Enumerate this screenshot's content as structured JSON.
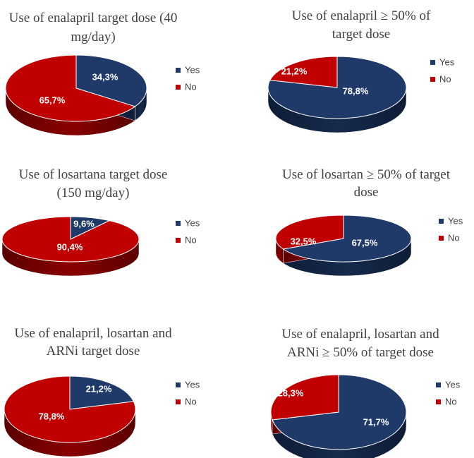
{
  "colors": {
    "yes": "#1F3A68",
    "no": "#C00000",
    "yes_side": "#162A4C",
    "no_side": "#8A0000"
  },
  "chart_data": [
    {
      "type": "pie",
      "title_lines": [
        "Use of enalapril target dose (40",
        "mg/day)"
      ],
      "categories": [
        "Yes",
        "No"
      ],
      "values": [
        34.3,
        65.7
      ],
      "labels": [
        "34,3%",
        "65,7%"
      ],
      "legend": [
        "Yes",
        "No"
      ]
    },
    {
      "type": "pie",
      "title_lines": [
        "Use of enalapril ≥ 50% of",
        "target dose"
      ],
      "categories": [
        "Yes",
        "No"
      ],
      "values": [
        78.8,
        21.2
      ],
      "labels": [
        "78,8%",
        "21,2%"
      ],
      "legend": [
        "Yes",
        "No"
      ]
    },
    {
      "type": "pie",
      "title_lines": [
        "Use of losartana target dose",
        "(150 mg/day)"
      ],
      "categories": [
        "Yes",
        "No"
      ],
      "values": [
        9.6,
        90.4
      ],
      "labels": [
        "9,6%",
        "90,4%"
      ],
      "legend": [
        "Yes",
        "No"
      ]
    },
    {
      "type": "pie",
      "title_lines": [
        "Use of losartan ≥ 50% of target",
        "dose"
      ],
      "categories": [
        "Yes",
        "No"
      ],
      "values": [
        67.5,
        32.5
      ],
      "labels": [
        "67,5%",
        "32,5%"
      ],
      "legend": [
        "Yes",
        "No"
      ]
    },
    {
      "type": "pie",
      "title_lines": [
        "Use of enalapril, losartan and",
        "ARNi target dose"
      ],
      "categories": [
        "Yes",
        "No"
      ],
      "values": [
        21.2,
        78.8
      ],
      "labels": [
        "21,2%",
        "78,8%"
      ],
      "legend": [
        "Yes",
        "No"
      ]
    },
    {
      "type": "pie",
      "title_lines": [
        "Use of enalapril, losartan and",
        "ARNi ≥ 50% of target dose"
      ],
      "categories": [
        "Yes",
        "No"
      ],
      "values": [
        71.7,
        28.3
      ],
      "labels": [
        "71,7%",
        "28,3%"
      ],
      "legend": [
        "Yes",
        "No"
      ]
    }
  ]
}
